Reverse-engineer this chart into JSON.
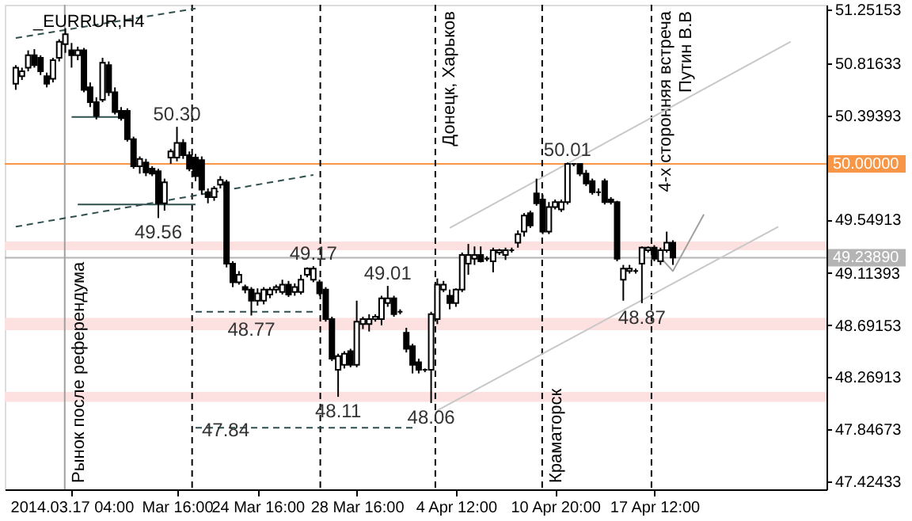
{
  "chart_data": {
    "type": "candlestick",
    "title": "_EURRUR,H4",
    "categories": [
      null,
      null,
      null,
      null,
      null,
      null,
      null,
      null,
      null,
      "2014.03.17 04:00",
      null,
      null,
      null,
      null,
      null,
      null,
      null,
      null,
      null,
      null,
      null,
      null,
      null,
      null,
      null,
      null,
      "Mar 16:00",
      null,
      null,
      null,
      null,
      null,
      null,
      null,
      null,
      null,
      null,
      null,
      null,
      "24 Mar 16:00",
      null,
      null,
      null,
      null,
      null,
      null,
      null,
      null,
      null,
      null,
      null,
      null,
      null,
      null,
      null,
      "28 Mar 16:00",
      null,
      null,
      null,
      null,
      null,
      null,
      null,
      null,
      null,
      null,
      null,
      null,
      null,
      null,
      null,
      "4 Apr 12:00",
      null,
      null,
      null,
      null,
      null,
      null,
      null,
      null,
      null,
      null,
      null,
      null,
      null,
      null,
      null,
      "10 Apr 20:00",
      null,
      null,
      null,
      null,
      null,
      null,
      null,
      null,
      null,
      null,
      null,
      null,
      null,
      null,
      null,
      "17 Apr 12:00",
      null,
      null,
      null,
      null,
      null,
      null,
      null,
      null,
      null,
      null,
      null,
      null,
      null,
      null,
      null,
      null,
      null,
      null,
      null,
      null,
      null,
      null,
      null,
      null,
      null,
      null
    ],
    "ohlc": [
      [
        50.65,
        50.8,
        50.6,
        50.78
      ],
      [
        50.71,
        50.78,
        50.68,
        50.75
      ],
      [
        50.78,
        50.92,
        50.75,
        50.88
      ],
      [
        50.88,
        50.93,
        50.78,
        50.8
      ],
      [
        50.86,
        50.88,
        50.72,
        50.75
      ],
      [
        50.71,
        50.74,
        50.62,
        50.65
      ],
      [
        50.69,
        50.86,
        50.66,
        50.84
      ],
      [
        50.86,
        51.01,
        50.83,
        50.99
      ],
      [
        50.97,
        51.1,
        50.9,
        51.05
      ],
      [
        50.92,
        50.98,
        50.78,
        50.88
      ],
      [
        50.88,
        50.95,
        50.84,
        50.92
      ],
      [
        50.92,
        50.94,
        50.58,
        50.6
      ],
      [
        50.62,
        50.66,
        50.46,
        50.5
      ],
      [
        50.5,
        50.54,
        50.36,
        50.39
      ],
      [
        50.52,
        50.86,
        50.5,
        50.82
      ],
      [
        50.8,
        50.83,
        50.55,
        50.58
      ],
      [
        50.58,
        50.62,
        50.4,
        50.42
      ],
      [
        50.43,
        50.46,
        50.35,
        50.37
      ],
      [
        50.43,
        50.45,
        50.18,
        50.2
      ],
      [
        50.2,
        50.22,
        49.96,
        49.98
      ],
      [
        49.98,
        50.06,
        49.92,
        50.04
      ],
      [
        50.01,
        50.04,
        49.9,
        49.93
      ],
      [
        49.96,
        49.98,
        49.9,
        49.92
      ],
      [
        49.94,
        49.96,
        49.56,
        49.68
      ],
      [
        49.68,
        49.88,
        49.62,
        49.85
      ],
      [
        50.05,
        50.12,
        50.0,
        50.1
      ],
      [
        50.05,
        50.3,
        50.02,
        50.17
      ],
      [
        50.17,
        50.2,
        50.04,
        50.07
      ],
      [
        50.07,
        50.1,
        49.94,
        49.96
      ],
      [
        50.05,
        50.08,
        49.86,
        49.9
      ],
      [
        50.03,
        50.06,
        49.75,
        49.79
      ],
      [
        49.77,
        49.8,
        49.68,
        49.73
      ],
      [
        49.73,
        49.82,
        49.7,
        49.8
      ],
      [
        49.83,
        49.9,
        49.8,
        49.87
      ],
      [
        49.85,
        49.87,
        49.16,
        49.19
      ],
      [
        49.19,
        49.21,
        49.0,
        49.04
      ],
      [
        49.04,
        49.13,
        49.02,
        49.1
      ],
      [
        49.0,
        49.02,
        48.95,
        48.98
      ],
      [
        48.98,
        49.0,
        48.77,
        48.89
      ],
      [
        48.89,
        48.99,
        48.85,
        48.95
      ],
      [
        48.89,
        49.0,
        48.86,
        48.98
      ],
      [
        48.94,
        49.0,
        48.91,
        48.98
      ],
      [
        48.98,
        49.02,
        48.95,
        49.0
      ],
      [
        48.96,
        49.06,
        48.94,
        49.02
      ],
      [
        49.02,
        49.05,
        48.92,
        48.94
      ],
      [
        48.96,
        49.03,
        48.93,
        49.0
      ],
      [
        48.96,
        49.1,
        48.94,
        49.06
      ],
      [
        49.1,
        49.16,
        49.08,
        49.15
      ],
      [
        49.06,
        49.17,
        49.04,
        49.15
      ],
      [
        49.04,
        49.06,
        48.93,
        48.95
      ],
      [
        48.98,
        49.0,
        48.72,
        48.74
      ],
      [
        48.74,
        48.76,
        48.4,
        48.42
      ],
      [
        48.33,
        48.46,
        48.11,
        48.44
      ],
      [
        48.37,
        48.48,
        48.34,
        48.46
      ],
      [
        48.48,
        48.5,
        48.35,
        48.37
      ],
      [
        48.37,
        48.89,
        48.35,
        48.72
      ],
      [
        48.7,
        48.76,
        48.66,
        48.74
      ],
      [
        48.7,
        48.78,
        48.64,
        48.74
      ],
      [
        48.74,
        48.78,
        48.72,
        48.76
      ],
      [
        48.74,
        48.93,
        48.69,
        48.91
      ],
      [
        48.87,
        49.01,
        48.84,
        48.91
      ],
      [
        48.91,
        48.93,
        48.76,
        48.78
      ],
      [
        48.8,
        48.82,
        48.78,
        48.8
      ],
      [
        48.63,
        48.67,
        48.47,
        48.5
      ],
      [
        48.52,
        48.54,
        48.3,
        48.37
      ],
      [
        48.39,
        48.42,
        48.3,
        48.33
      ],
      [
        48.33,
        48.34,
        48.31,
        48.33
      ],
      [
        48.33,
        48.8,
        48.06,
        48.78
      ],
      [
        48.74,
        49.07,
        48.7,
        49.02
      ],
      [
        48.98,
        49.05,
        48.96,
        49.02
      ],
      [
        48.93,
        48.98,
        48.82,
        48.87
      ],
      [
        48.87,
        48.99,
        48.84,
        48.98
      ],
      [
        48.98,
        49.28,
        48.96,
        49.26
      ],
      [
        49.19,
        49.35,
        49.1,
        49.26
      ],
      [
        49.23,
        49.33,
        49.18,
        49.26
      ],
      [
        49.26,
        49.33,
        49.2,
        49.21
      ],
      [
        49.23,
        49.25,
        49.21,
        49.23
      ],
      [
        49.21,
        49.32,
        49.12,
        49.3
      ],
      [
        49.28,
        49.31,
        49.26,
        49.3
      ],
      [
        49.26,
        49.32,
        49.22,
        49.3
      ],
      [
        49.3,
        49.32,
        49.28,
        49.3
      ],
      [
        49.36,
        49.46,
        49.32,
        49.43
      ],
      [
        49.45,
        49.6,
        49.41,
        49.58
      ],
      [
        49.6,
        49.62,
        49.48,
        49.5
      ],
      [
        49.76,
        49.88,
        49.66,
        49.68
      ],
      [
        49.71,
        49.75,
        49.43,
        49.45
      ],
      [
        49.45,
        49.69,
        49.43,
        49.65
      ],
      [
        49.65,
        49.71,
        49.63,
        49.69
      ],
      [
        49.63,
        49.71,
        49.61,
        49.69
      ],
      [
        49.69,
        50.01,
        49.67,
        50.0
      ],
      [
        50.0,
        50.0,
        49.98,
        50.0
      ],
      [
        50.0,
        50.0,
        49.9,
        49.92
      ],
      [
        49.92,
        49.95,
        49.82,
        49.84
      ],
      [
        49.86,
        49.88,
        49.75,
        49.77
      ],
      [
        49.77,
        49.8,
        49.74,
        49.77
      ],
      [
        49.86,
        49.88,
        49.67,
        49.69
      ],
      [
        49.71,
        49.73,
        49.67,
        49.69
      ],
      [
        49.69,
        49.7,
        49.21,
        49.23
      ],
      [
        49.06,
        49.18,
        48.89,
        49.15
      ],
      [
        49.13,
        49.18,
        49.11,
        49.15
      ],
      [
        49.13,
        49.15,
        49.11,
        49.13
      ],
      [
        49.19,
        49.33,
        48.87,
        49.32
      ],
      [
        49.3,
        49.33,
        49.28,
        49.32
      ],
      [
        49.32,
        49.34,
        49.21,
        49.23
      ],
      [
        49.21,
        49.32,
        49.18,
        49.3
      ],
      [
        49.3,
        49.45,
        49.28,
        49.36
      ],
      [
        49.36,
        49.38,
        49.18,
        49.24
      ],
      null,
      null,
      null,
      null,
      null,
      null,
      null,
      null,
      null,
      null,
      null,
      null,
      null,
      null,
      null,
      null,
      null,
      null,
      null,
      null,
      null,
      null,
      null
    ],
    "series": [
      {
        "type": "line",
        "color": "#2f4f4f",
        "line_style": "dashed",
        "values": [
          51.02,
          null,
          null,
          null,
          null,
          null,
          null,
          null,
          null,
          null,
          null,
          null,
          null,
          null,
          null,
          null,
          null,
          null,
          null,
          null,
          null,
          null,
          null,
          null,
          null,
          null,
          null,
          null,
          null,
          51.26,
          null,
          null,
          null,
          null,
          null,
          null,
          null,
          null,
          null,
          null,
          null,
          null,
          null,
          null,
          null,
          null,
          null,
          null,
          null,
          null,
          null,
          null,
          null,
          null,
          null,
          null,
          null,
          null,
          null,
          null,
          null,
          null,
          null,
          null,
          null,
          null,
          null,
          null,
          null,
          null,
          null,
          null,
          null,
          null,
          null,
          null,
          null,
          null,
          null,
          null,
          null,
          null,
          null,
          null,
          null,
          null,
          null,
          null,
          null,
          null,
          null,
          null,
          null,
          null,
          null,
          null,
          null,
          null,
          null,
          null,
          null,
          null,
          null,
          null,
          null,
          null,
          null,
          null,
          null,
          null,
          null,
          null,
          null,
          null,
          null,
          null,
          null,
          null,
          null,
          null,
          null,
          null,
          null,
          null,
          null,
          null,
          null,
          null,
          null,
          null
        ]
      },
      {
        "type": "line",
        "color": "#2f4f4f",
        "line_style": "dashed",
        "values": [
          49.49,
          null,
          null,
          null,
          null,
          null,
          null,
          null,
          null,
          null,
          null,
          null,
          null,
          null,
          null,
          null,
          null,
          null,
          null,
          null,
          null,
          null,
          null,
          null,
          null,
          null,
          null,
          null,
          null,
          null,
          null,
          null,
          null,
          null,
          null,
          null,
          null,
          null,
          null,
          null,
          null,
          null,
          null,
          null,
          null,
          null,
          null,
          null,
          49.91,
          null,
          null,
          null,
          null,
          null,
          null,
          null,
          null,
          null,
          null,
          null,
          null,
          null,
          null,
          null,
          null,
          null,
          null,
          null,
          null,
          null,
          null,
          null,
          null,
          null,
          null,
          null,
          null,
          null,
          null,
          null,
          null,
          null,
          null,
          null,
          null,
          null,
          null,
          null,
          null,
          null,
          null,
          null,
          null,
          null,
          null,
          null,
          null,
          null,
          null,
          null,
          null,
          null,
          null,
          null,
          null,
          null,
          null,
          null,
          null,
          null,
          null,
          null,
          null,
          null,
          null,
          null,
          null,
          null,
          null,
          null,
          null,
          null,
          null,
          null,
          null,
          null,
          null,
          null,
          null,
          null
        ]
      },
      {
        "type": "line",
        "color": "#c8c8c8",
        "line_style": "solid",
        "values": [
          null,
          null,
          null,
          null,
          null,
          null,
          null,
          null,
          null,
          null,
          null,
          null,
          null,
          null,
          null,
          null,
          null,
          null,
          null,
          null,
          null,
          null,
          null,
          null,
          null,
          null,
          null,
          null,
          null,
          null,
          null,
          null,
          null,
          null,
          null,
          null,
          null,
          null,
          null,
          null,
          null,
          null,
          null,
          null,
          null,
          null,
          null,
          null,
          null,
          null,
          null,
          null,
          null,
          null,
          null,
          null,
          null,
          null,
          null,
          null,
          null,
          null,
          null,
          null,
          null,
          null,
          null,
          null,
          null,
          null,
          49.48,
          null,
          null,
          null,
          null,
          null,
          null,
          null,
          null,
          null,
          null,
          null,
          null,
          null,
          null,
          null,
          null,
          null,
          null,
          null,
          null,
          null,
          null,
          null,
          null,
          null,
          null,
          null,
          null,
          null,
          null,
          null,
          null,
          null,
          null,
          null,
          null,
          null,
          null,
          null,
          null,
          null,
          null,
          null,
          null,
          null,
          null,
          null,
          null,
          null,
          null,
          null,
          null,
          null,
          null,
          50.99,
          null,
          null,
          null,
          null
        ]
      },
      {
        "type": "line",
        "color": "#c8c8c8",
        "line_style": "solid",
        "values": [
          null,
          null,
          null,
          null,
          null,
          null,
          null,
          null,
          null,
          null,
          null,
          null,
          null,
          null,
          null,
          null,
          null,
          null,
          null,
          null,
          null,
          null,
          null,
          null,
          null,
          null,
          null,
          null,
          null,
          null,
          null,
          null,
          null,
          null,
          null,
          null,
          null,
          null,
          null,
          null,
          null,
          null,
          null,
          null,
          null,
          null,
          null,
          null,
          null,
          null,
          null,
          null,
          null,
          null,
          null,
          null,
          null,
          null,
          null,
          null,
          null,
          null,
          null,
          null,
          null,
          null,
          null,
          null,
          48.0,
          null,
          null,
          null,
          null,
          null,
          null,
          null,
          null,
          null,
          null,
          null,
          null,
          null,
          null,
          null,
          null,
          null,
          null,
          null,
          null,
          null,
          null,
          null,
          null,
          null,
          null,
          null,
          null,
          null,
          null,
          null,
          null,
          null,
          null,
          null,
          null,
          null,
          null,
          null,
          null,
          null,
          null,
          null,
          null,
          null,
          null,
          null,
          null,
          null,
          null,
          null,
          null,
          null,
          null,
          49.49,
          null,
          null,
          null,
          null,
          null,
          null
        ]
      },
      {
        "type": "line",
        "color": "#2f4f4f",
        "line_style": "solid",
        "values": [
          null,
          null,
          null,
          null,
          null,
          null,
          null,
          null,
          null,
          50.38,
          null,
          null,
          null,
          null,
          null,
          null,
          null,
          50.38,
          null,
          null,
          null,
          null,
          null,
          null,
          null,
          null,
          null,
          null,
          null,
          null,
          null,
          null,
          null,
          null,
          null,
          null,
          null,
          null,
          null,
          null,
          null,
          null,
          null,
          null,
          null,
          null,
          null,
          null,
          null,
          null,
          null,
          null,
          null,
          null,
          null,
          null,
          null,
          null,
          null,
          null,
          null,
          null,
          null,
          null,
          null,
          null,
          null,
          null,
          null,
          null,
          null,
          null,
          null,
          null,
          null,
          null,
          null,
          null,
          null,
          null,
          null,
          null,
          null,
          null,
          null,
          null,
          null,
          null,
          null,
          null,
          null,
          null,
          null,
          null,
          null,
          null,
          null,
          null,
          null,
          null,
          null,
          null,
          null,
          null,
          null,
          null,
          null,
          null,
          null,
          null,
          null,
          null,
          null,
          null,
          null,
          null,
          null,
          null,
          null,
          null,
          null,
          null,
          null,
          null,
          null,
          null,
          null,
          null,
          null,
          null
        ]
      },
      {
        "type": "line",
        "color": "#2f4f4f",
        "line_style": "solid",
        "values": [
          null,
          null,
          null,
          null,
          null,
          null,
          null,
          null,
          null,
          null,
          49.67,
          null,
          null,
          null,
          null,
          null,
          null,
          null,
          null,
          null,
          null,
          null,
          null,
          null,
          null,
          null,
          null,
          null,
          null,
          49.67,
          null,
          null,
          null,
          null,
          null,
          null,
          null,
          null,
          null,
          null,
          null,
          null,
          null,
          null,
          null,
          null,
          null,
          null,
          null,
          null,
          null,
          null,
          null,
          null,
          null,
          null,
          null,
          null,
          null,
          null,
          null,
          null,
          null,
          null,
          null,
          null,
          null,
          null,
          null,
          null,
          null,
          null,
          null,
          null,
          null,
          null,
          null,
          null,
          null,
          null,
          null,
          null,
          null,
          null,
          null,
          null,
          null,
          null,
          null,
          null,
          null,
          null,
          null,
          null,
          null,
          null,
          null,
          null,
          null,
          null,
          null,
          null,
          null,
          null,
          null,
          null,
          null,
          null,
          null,
          null,
          null,
          null,
          null,
          null,
          null,
          null,
          null,
          null,
          null,
          null,
          null,
          null,
          null,
          null,
          null,
          null,
          null,
          null,
          null,
          null
        ]
      },
      {
        "type": "line",
        "color": "#2f4f4f",
        "line_style": "dashed",
        "values": [
          null,
          null,
          null,
          null,
          null,
          null,
          null,
          null,
          null,
          null,
          null,
          null,
          null,
          null,
          null,
          null,
          null,
          null,
          null,
          null,
          null,
          null,
          null,
          null,
          null,
          null,
          null,
          null,
          null,
          48.8,
          null,
          null,
          null,
          null,
          null,
          null,
          null,
          null,
          null,
          null,
          null,
          null,
          null,
          null,
          null,
          null,
          null,
          null,
          48.8,
          null,
          null,
          null,
          null,
          null,
          null,
          null,
          null,
          null,
          null,
          null,
          null,
          null,
          null,
          null,
          null,
          null,
          null,
          null,
          null,
          null,
          null,
          null,
          null,
          null,
          null,
          null,
          null,
          null,
          null,
          null,
          null,
          null,
          null,
          null,
          null,
          null,
          null,
          null,
          null,
          null,
          null,
          null,
          null,
          null,
          null,
          null,
          null,
          null,
          null,
          null,
          null,
          null,
          null,
          null,
          null,
          null,
          null,
          null,
          null,
          null,
          null,
          null,
          null,
          null,
          null,
          null,
          null,
          null,
          null,
          null,
          null,
          null,
          null,
          null,
          null,
          null,
          null,
          null,
          null,
          null
        ]
      },
      {
        "type": "line",
        "color": "#2f4f4f",
        "line_style": "dashed",
        "values": [
          null,
          null,
          null,
          null,
          null,
          null,
          null,
          null,
          null,
          null,
          null,
          null,
          null,
          null,
          null,
          null,
          null,
          null,
          null,
          null,
          null,
          null,
          null,
          null,
          null,
          null,
          null,
          null,
          null,
          47.86,
          null,
          null,
          null,
          null,
          null,
          null,
          null,
          null,
          null,
          null,
          null,
          null,
          null,
          null,
          null,
          null,
          null,
          null,
          null,
          null,
          null,
          null,
          null,
          null,
          null,
          null,
          null,
          null,
          null,
          null,
          null,
          null,
          null,
          null,
          47.86,
          null,
          null,
          null,
          null,
          null,
          null,
          null,
          null,
          null,
          null,
          null,
          null,
          null,
          null,
          null,
          null,
          null,
          null,
          null,
          null,
          null,
          null,
          null,
          null,
          null,
          null,
          null,
          null,
          null,
          null,
          null,
          null,
          null,
          null,
          null,
          null,
          null,
          null,
          null,
          null,
          null,
          null,
          null,
          null,
          null,
          null,
          null,
          null,
          null,
          null,
          null,
          null,
          null,
          null,
          null,
          null,
          null,
          null,
          null,
          null,
          null,
          null,
          null,
          null,
          null
        ]
      },
      {
        "type": "line",
        "color": "#a0a0a0",
        "line_style": "solid",
        "values": [
          null,
          null,
          null,
          null,
          null,
          null,
          null,
          null,
          null,
          null,
          null,
          null,
          null,
          null,
          null,
          null,
          null,
          null,
          null,
          null,
          null,
          null,
          null,
          null,
          null,
          null,
          null,
          null,
          null,
          null,
          null,
          null,
          null,
          null,
          null,
          null,
          null,
          null,
          null,
          null,
          null,
          null,
          null,
          null,
          null,
          null,
          null,
          null,
          null,
          null,
          null,
          null,
          null,
          null,
          null,
          null,
          null,
          null,
          null,
          null,
          null,
          null,
          null,
          null,
          null,
          null,
          null,
          null,
          null,
          null,
          null,
          null,
          null,
          null,
          null,
          null,
          null,
          null,
          null,
          null,
          null,
          null,
          null,
          null,
          null,
          null,
          null,
          null,
          null,
          null,
          null,
          null,
          null,
          null,
          null,
          null,
          null,
          null,
          null,
          null,
          null,
          null,
          null,
          null,
          49.24,
          null,
          49.13,
          null,
          null,
          null,
          null,
          49.59,
          null,
          null,
          null,
          null,
          null,
          null,
          null,
          null,
          null,
          null,
          null,
          null,
          null,
          null,
          null,
          null,
          null,
          null
        ]
      }
    ],
    "ylim": [
      47.36,
      51.29
    ],
    "yticks": [
      47.42433,
      47.84673,
      48.26913,
      48.69153,
      49.11393,
      49.54913,
      50.39393,
      50.81633,
      51.25153
    ],
    "ref_lines": [
      {
        "axis": "y",
        "value": 50.0,
        "color": "#f79646",
        "line_style": "solid",
        "label": "50.00000"
      },
      {
        "axis": "y",
        "value": 49.2389,
        "color": "#b4b4b4",
        "line_style": "solid",
        "label": "49.23890"
      }
    ],
    "bands": [
      {
        "axis": "y",
        "from": 49.3,
        "to": 49.37,
        "color": "#fde0e0"
      },
      {
        "axis": "y",
        "from": 48.65,
        "to": 48.75,
        "color": "#fde0e0"
      },
      {
        "axis": "y",
        "from": 48.07,
        "to": 48.15,
        "color": "#fde0e0"
      }
    ],
    "annotations": [
      {
        "text": "50.30",
        "y": 50.3
      },
      {
        "text": "49.56",
        "y": 49.56
      },
      {
        "text": "49.17",
        "y": 49.17
      },
      {
        "text": "48.77",
        "y": 48.77
      },
      {
        "text": "49.01",
        "y": 49.01
      },
      {
        "text": "48.11",
        "y": 48.11
      },
      {
        "text": "48.06",
        "y": 48.06
      },
      {
        "text": "50.01",
        "y": 50.01
      },
      {
        "text": "48.87",
        "y": 48.87
      },
      {
        "text": "47.84",
        "y": 47.84
      },
      "Рынок после референдума",
      "Донецк, Харьков",
      "Краматорск",
      "4-х сторонняя встреча\nПутин В.В"
    ],
    "grid": false
  }
}
